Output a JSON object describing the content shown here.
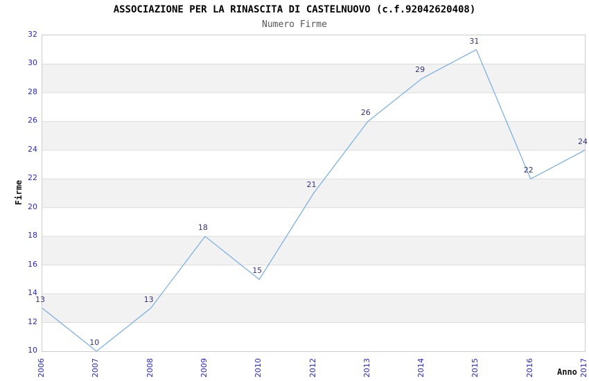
{
  "chart_data": {
    "type": "line",
    "title": "ASSOCIAZIONE PER LA RINASCITA DI CASTELNUOVO (c.f.92042620408)",
    "subtitle": "Numero Firme",
    "xlabel": "Anno",
    "ylabel": "Firme",
    "categories": [
      "2006",
      "2007",
      "2008",
      "2009",
      "2010",
      "2012",
      "2013",
      "2014",
      "2015",
      "2016",
      "2017"
    ],
    "values": [
      13,
      10,
      13,
      18,
      15,
      21,
      26,
      29,
      31,
      22,
      24
    ],
    "ylim": [
      10,
      32
    ],
    "y_ticks": [
      10,
      12,
      14,
      16,
      18,
      20,
      22,
      24,
      26,
      28,
      30,
      32
    ],
    "grid": "horizontal lines every 2 units with alternating shaded bands",
    "legend": "none",
    "colors": {
      "line": "#74abe2",
      "band": "#f2f2f2",
      "gridline": "#dcdcdc",
      "plot_border": "#cccccc",
      "tick_labels": "#2626d9",
      "data_labels": "#333377",
      "title": "#000000",
      "subtitle": "#555555",
      "axis_titles": "#111111",
      "background": "#ffffff"
    }
  }
}
